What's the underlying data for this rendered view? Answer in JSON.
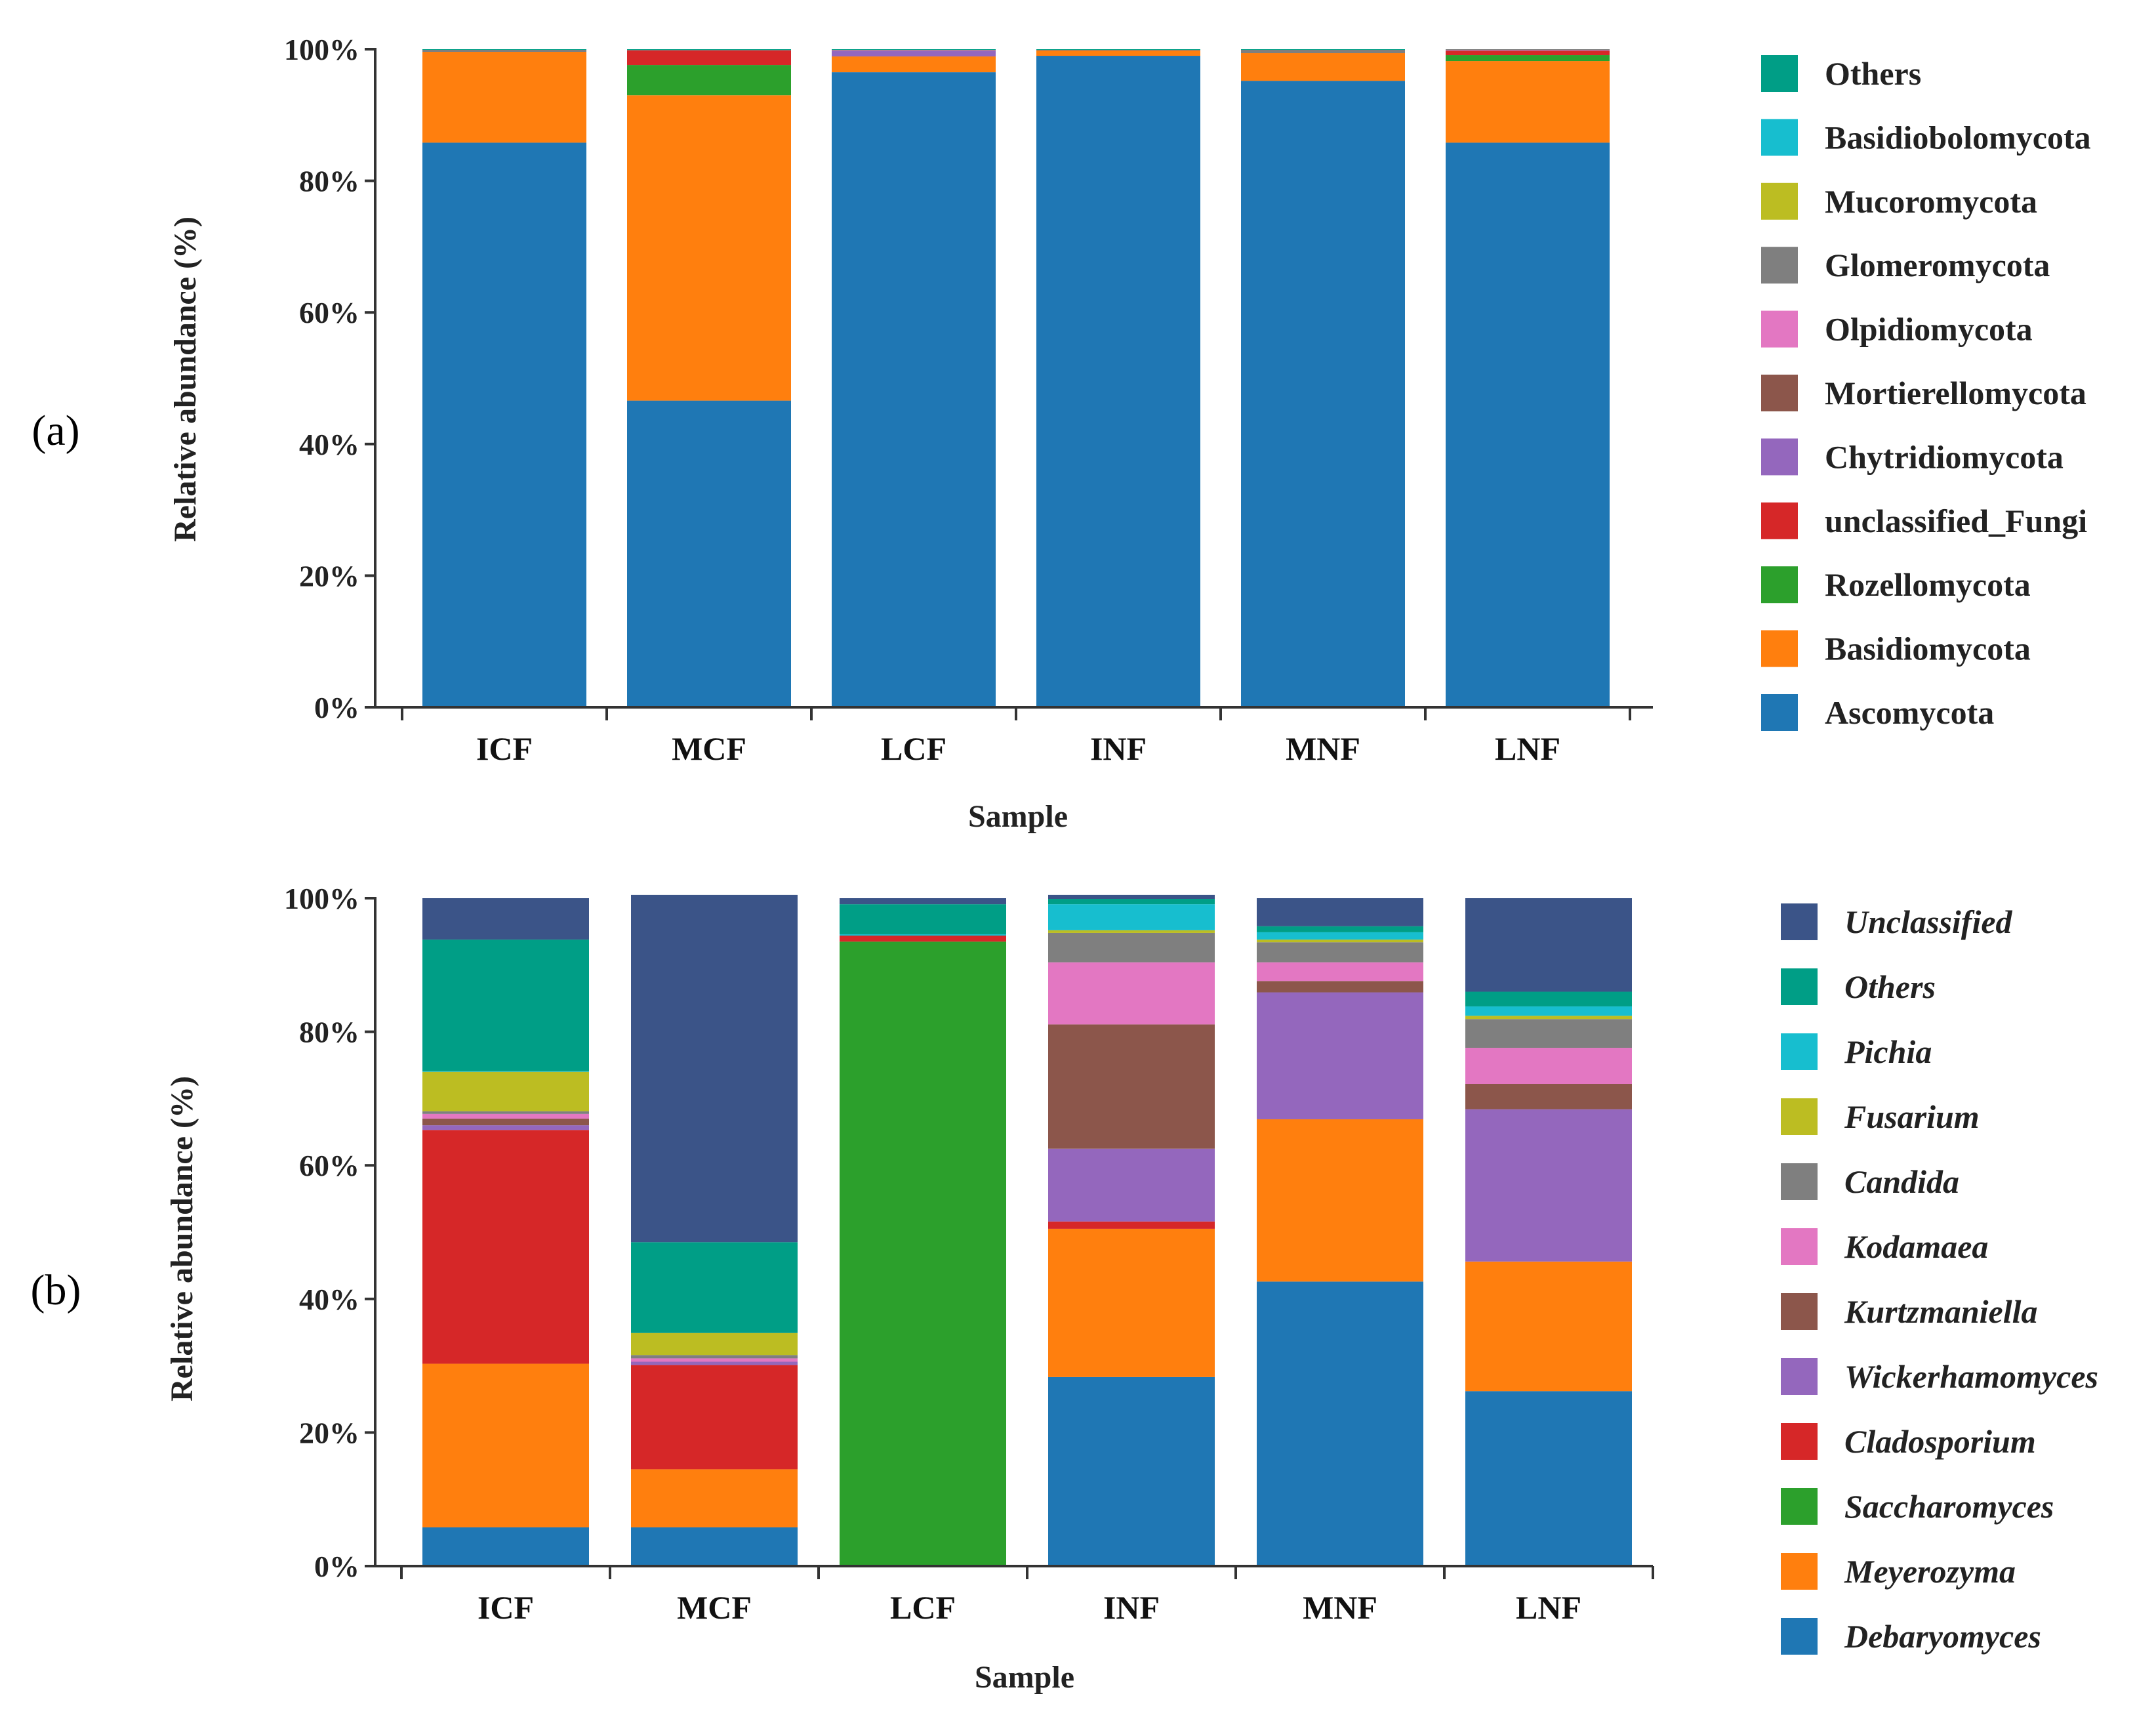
{
  "chart_data": [
    {
      "type": "bar",
      "stacked": true,
      "panel_label": "(a)",
      "xlabel": "Sample",
      "ylabel": "Relative abundance (%)",
      "ylim": [
        0,
        100
      ],
      "yticks": [
        "0%",
        "20%",
        "40%",
        "60%",
        "80%",
        "100%"
      ],
      "categories": [
        "ICF",
        "MCF",
        "LCF",
        "INF",
        "MNF",
        "LNF"
      ],
      "legend_position": "right",
      "legend_italic": false,
      "series": [
        {
          "name": "Ascomycota",
          "color": "#1f77b4",
          "values": [
            85.8,
            46.6,
            96.5,
            99.0,
            95.2,
            85.8
          ]
        },
        {
          "name": "Basidiomycota",
          "color": "#ff7f0e",
          "values": [
            13.8,
            46.4,
            2.4,
            0.8,
            4.2,
            12.4
          ]
        },
        {
          "name": "Rozellomycota",
          "color": "#2ca02c",
          "values": [
            0.0,
            4.6,
            0.0,
            0.0,
            0.0,
            0.9
          ]
        },
        {
          "name": "unclassified_Fungi",
          "color": "#d62728",
          "values": [
            0.0,
            2.2,
            0.0,
            0.0,
            0.0,
            0.6
          ]
        },
        {
          "name": "Chytridiomycota",
          "color": "#9467bd",
          "values": [
            0.0,
            0.0,
            0.8,
            0.0,
            0.0,
            0.0
          ]
        },
        {
          "name": "Mortierellomycota",
          "color": "#8c564b",
          "values": [
            0.0,
            0.0,
            0.0,
            0.0,
            0.0,
            0.1
          ]
        },
        {
          "name": "Olpidiomycota",
          "color": "#e377c2",
          "values": [
            0.0,
            0.0,
            0.1,
            0.0,
            0.0,
            0.1
          ]
        },
        {
          "name": "Glomeromycota",
          "color": "#7f7f7f",
          "values": [
            0.3,
            0.1,
            0.1,
            0.1,
            0.5,
            0.1
          ]
        },
        {
          "name": "Mucoromycota",
          "color": "#bcbd22",
          "values": [
            0.0,
            0.0,
            0.0,
            0.0,
            0.0,
            0.0
          ]
        },
        {
          "name": "Basidiobolomycota",
          "color": "#17becf",
          "values": [
            0.0,
            0.0,
            0.0,
            0.0,
            0.0,
            0.0
          ]
        },
        {
          "name": "Others",
          "color": "#009e86",
          "values": [
            0.1,
            0.1,
            0.1,
            0.1,
            0.1,
            0.0
          ]
        }
      ]
    },
    {
      "type": "bar",
      "stacked": true,
      "panel_label": "(b)",
      "xlabel": "Sample",
      "ylabel": "Relative abundance (%)",
      "ylim": [
        0,
        100
      ],
      "yticks": [
        "0%",
        "20%",
        "40%",
        "60%",
        "80%",
        "100%"
      ],
      "categories": [
        "ICF",
        "MCF",
        "LCF",
        "INF",
        "MNF",
        "LNF"
      ],
      "legend_position": "right",
      "legend_italic": true,
      "series": [
        {
          "name": "Debaryomyces",
          "color": "#1f77b4",
          "values": [
            5.8,
            5.8,
            0.0,
            28.3,
            42.6,
            26.2
          ]
        },
        {
          "name": "Meyerozyma",
          "color": "#ff7f0e",
          "values": [
            24.5,
            8.7,
            0.0,
            22.2,
            24.3,
            19.4
          ]
        },
        {
          "name": "Saccharomyces",
          "color": "#2ca02c",
          "values": [
            0.0,
            0.0,
            93.5,
            0.0,
            0.0,
            0.0
          ]
        },
        {
          "name": "Cladosporium",
          "color": "#d62728",
          "values": [
            35.0,
            15.6,
            0.9,
            1.1,
            0.0,
            0.0
          ]
        },
        {
          "name": "Wickerhamomyces",
          "color": "#9467bd",
          "values": [
            0.7,
            0.5,
            0.0,
            10.9,
            19.0,
            22.8
          ]
        },
        {
          "name": "Kurtzmaniella",
          "color": "#8c564b",
          "values": [
            1.0,
            0.0,
            0.0,
            18.6,
            1.7,
            3.8
          ]
        },
        {
          "name": "Kodamaea",
          "color": "#e377c2",
          "values": [
            0.7,
            0.5,
            0.0,
            9.3,
            2.8,
            5.4
          ]
        },
        {
          "name": "Candida",
          "color": "#7f7f7f",
          "values": [
            0.4,
            0.5,
            0.0,
            4.4,
            3.0,
            4.3
          ]
        },
        {
          "name": "Fusarium",
          "color": "#bcbd22",
          "values": [
            5.9,
            3.3,
            0.0,
            0.4,
            0.4,
            0.5
          ]
        },
        {
          "name": "Pichia",
          "color": "#17becf",
          "values": [
            0.1,
            0.0,
            0.2,
            3.9,
            1.1,
            1.4
          ]
        },
        {
          "name": "Others",
          "color": "#009e86",
          "values": [
            19.7,
            13.6,
            4.5,
            0.8,
            0.9,
            2.2
          ]
        },
        {
          "name": "Unclassified",
          "color": "#3b5488",
          "values": [
            6.2,
            52.0,
            0.9,
            0.6,
            4.2,
            14.0
          ]
        }
      ]
    }
  ]
}
